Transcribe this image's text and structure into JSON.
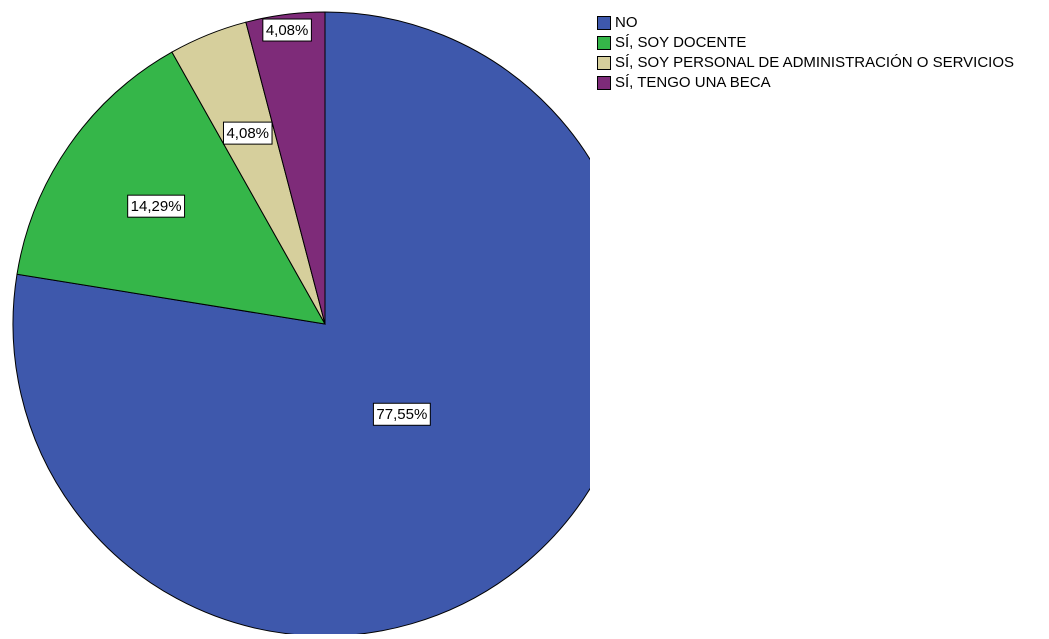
{
  "chart_data": {
    "type": "pie",
    "categories": [
      "NO",
      "SÍ, SOY DOCENTE",
      "SÍ, SOY PERSONAL DE ADMINISTRACIÓN O SERVICIOS",
      "SÍ, TENGO UNA BECA"
    ],
    "values": [
      77.55,
      14.29,
      4.08,
      4.08
    ],
    "value_labels": [
      "77,55%",
      "14,29%",
      "4,08%",
      "4,08%"
    ],
    "colors": [
      "#3e58ac",
      "#35b649",
      "#d6cf9c",
      "#7e2b79"
    ]
  }
}
